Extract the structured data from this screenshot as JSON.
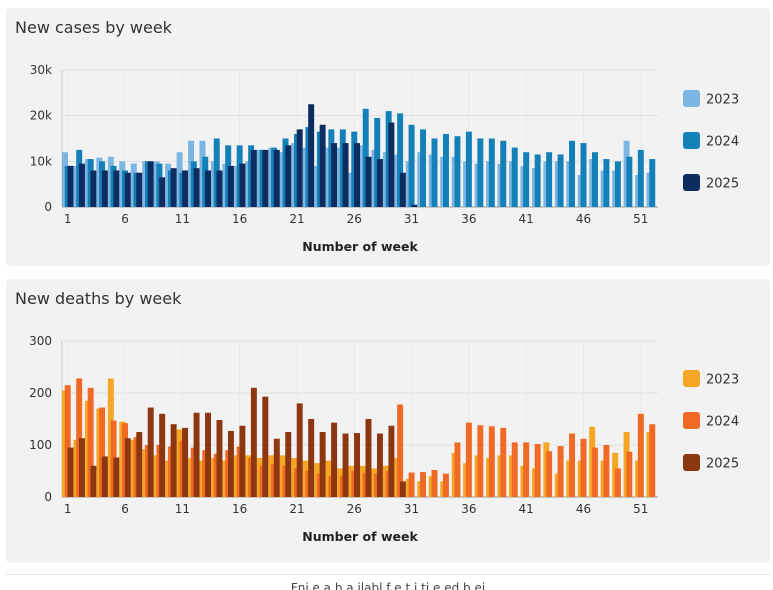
{
  "charts": [
    {
      "id": "cases",
      "title": "New cases by week",
      "xlabel": "Number of week",
      "ylabel": "",
      "yticks": [
        "30k",
        "20k",
        "10k",
        "0"
      ],
      "xticks": [
        "1",
        "6",
        "11",
        "16",
        "21",
        "26",
        "31",
        "36",
        "41",
        "46",
        "51"
      ]
    },
    {
      "id": "deaths",
      "title": "New deaths by week",
      "xlabel": "Number of week",
      "ylabel": "",
      "yticks": [
        "300",
        "200",
        "100",
        "0"
      ],
      "xticks": [
        "1",
        "6",
        "11",
        "16",
        "21",
        "26",
        "31",
        "36",
        "41",
        "46",
        "51"
      ]
    }
  ],
  "footer": {
    "text": "Fni                  e a     b   a  ilabl  f    e       t  i             ti              e      ed b   ei"
  },
  "chart_data": [
    {
      "type": "bar",
      "title": "New cases by week",
      "xlabel": "Number of week",
      "ylabel": "",
      "x": [
        1,
        2,
        3,
        4,
        5,
        6,
        7,
        8,
        9,
        10,
        11,
        12,
        13,
        14,
        15,
        16,
        17,
        18,
        19,
        20,
        21,
        22,
        23,
        24,
        25,
        26,
        27,
        28,
        29,
        30,
        31,
        32,
        33,
        34,
        35,
        36,
        37,
        38,
        39,
        40,
        41,
        42,
        43,
        44,
        45,
        46,
        47,
        48,
        49,
        50,
        51,
        52
      ],
      "ylim": [
        0,
        30000
      ],
      "legend_position": "right",
      "series": [
        {
          "name": "2023",
          "color": "#7cb5e2",
          "values": [
            12000,
            9000,
            10500,
            10800,
            11000,
            10000,
            9500,
            10000,
            10000,
            9500,
            12000,
            14500,
            14500,
            10000,
            9500,
            9000,
            10000,
            12500,
            13000,
            12000,
            14000,
            13000,
            9000,
            13000,
            13000,
            7500,
            13500,
            12500,
            12000,
            11500,
            10000,
            12000,
            11500,
            11000,
            11000,
            10000,
            9500,
            10000,
            9500,
            10000,
            9000,
            8500,
            10000,
            10000,
            10000,
            7000,
            10500,
            8000,
            8000,
            14500,
            7000,
            7500
          ]
        },
        {
          "name": "2024",
          "color": "#1380b8",
          "values": [
            9000,
            12500,
            10500,
            10000,
            9000,
            8000,
            7500,
            10000,
            9500,
            8000,
            7500,
            10000,
            11000,
            15000,
            13500,
            13500,
            13500,
            12500,
            13000,
            15000,
            16000,
            17500,
            16500,
            17000,
            17000,
            16500,
            21500,
            19500,
            21000,
            20500,
            18000,
            17000,
            15000,
            16000,
            15500,
            16500,
            15000,
            15000,
            14500,
            13000,
            12000,
            11500,
            12000,
            11500,
            14500,
            14000,
            12000,
            10500,
            10000,
            11000,
            12500,
            10500
          ]
        },
        {
          "name": "2025",
          "color": "#0d2d60",
          "values": [
            9000,
            9500,
            8000,
            8000,
            8000,
            7500,
            7500,
            10000,
            6500,
            8500,
            8000,
            8500,
            8000,
            8000,
            9000,
            9500,
            12500,
            12500,
            12500,
            13500,
            17000,
            22500,
            18000,
            14000,
            14000,
            14000,
            11000,
            10500,
            18500,
            7500,
            500,
            null,
            null,
            null,
            null,
            null,
            null,
            null,
            null,
            null,
            null,
            null,
            null,
            null,
            null,
            null,
            null,
            null,
            null,
            null,
            null,
            null
          ]
        }
      ]
    },
    {
      "type": "bar",
      "title": "New deaths by week",
      "xlabel": "Number of week",
      "ylabel": "",
      "x": [
        1,
        2,
        3,
        4,
        5,
        6,
        7,
        8,
        9,
        10,
        11,
        12,
        13,
        14,
        15,
        16,
        17,
        18,
        19,
        20,
        21,
        22,
        23,
        24,
        25,
        26,
        27,
        28,
        29,
        30,
        31,
        32,
        33,
        34,
        35,
        36,
        37,
        38,
        39,
        40,
        41,
        42,
        43,
        44,
        45,
        46,
        47,
        48,
        49,
        50,
        51,
        52
      ],
      "ylim": [
        0,
        300
      ],
      "legend_position": "right",
      "series": [
        {
          "name": "2023",
          "color": "#f4a624",
          "values": [
            205,
            110,
            185,
            170,
            228,
            145,
            110,
            92,
            80,
            70,
            130,
            75,
            70,
            75,
            70,
            80,
            80,
            75,
            80,
            80,
            75,
            70,
            65,
            70,
            55,
            60,
            60,
            55,
            60,
            75,
            35,
            30,
            40,
            30,
            85,
            65,
            80,
            75,
            80,
            80,
            60,
            55,
            105,
            45,
            70,
            70,
            135,
            70,
            85,
            125,
            70,
            125
          ]
        },
        {
          "name": "2024",
          "color": "#f06a26",
          "values": [
            215,
            228,
            210,
            172,
            147,
            142,
            115,
            100,
            100,
            97,
            108,
            95,
            90,
            83,
            90,
            97,
            75,
            60,
            63,
            60,
            55,
            50,
            45,
            40,
            40,
            50,
            47,
            45,
            50,
            178,
            47,
            48,
            52,
            45,
            105,
            143,
            138,
            136,
            133,
            105,
            105,
            102,
            88,
            98,
            122,
            112,
            95,
            100,
            55,
            87,
            160,
            140
          ]
        },
        {
          "name": "2025",
          "color": "#8c3710",
          "values": [
            95,
            113,
            60,
            78,
            76,
            113,
            125,
            172,
            160,
            140,
            133,
            162,
            162,
            148,
            127,
            137,
            210,
            193,
            112,
            125,
            180,
            150,
            125,
            143,
            122,
            123,
            150,
            122,
            137,
            30,
            null,
            null,
            null,
            null,
            null,
            null,
            null,
            null,
            null,
            null,
            null,
            null,
            null,
            null,
            null,
            null,
            null,
            null,
            null,
            null,
            null,
            null
          ]
        }
      ]
    }
  ]
}
